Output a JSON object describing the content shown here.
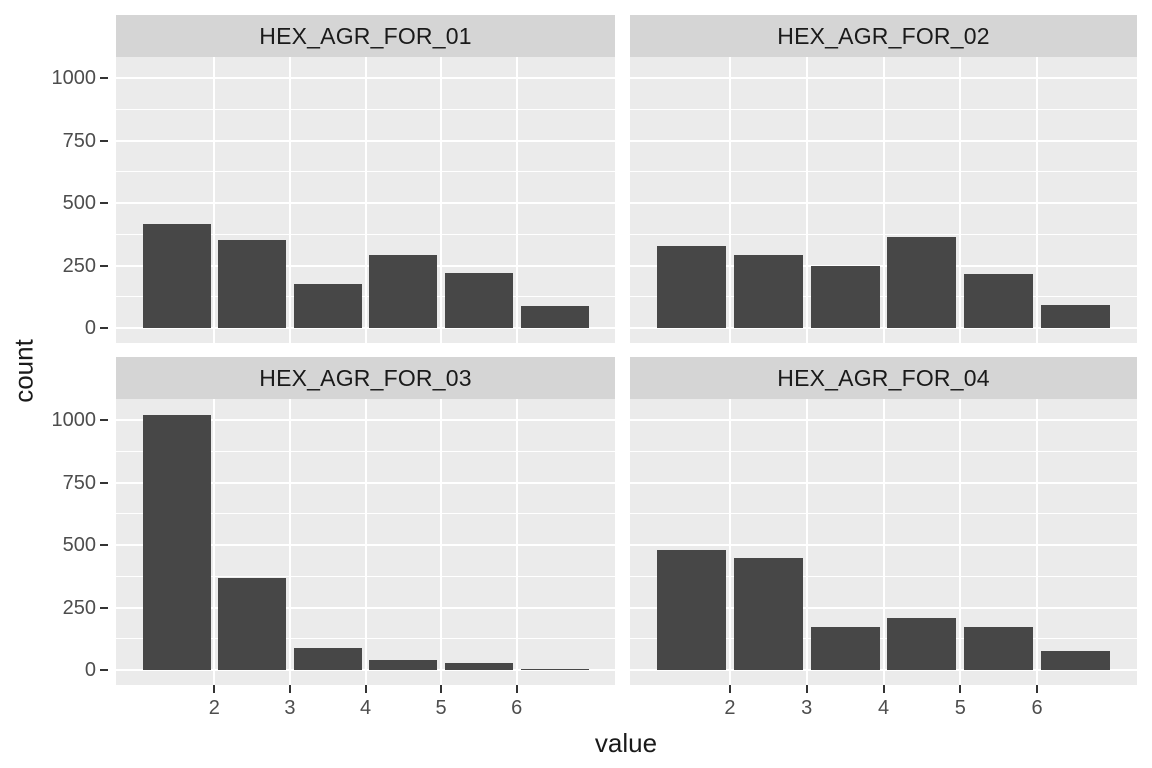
{
  "chart_data": {
    "type": "bar",
    "title": "",
    "xlabel": "value",
    "ylabel": "count",
    "facet_layout": "2x2",
    "legend": "none",
    "grid": true,
    "facets": [
      {
        "label": "HEX_AGR_FOR_01",
        "values": [
          415,
          353,
          177,
          293,
          221,
          90
        ]
      },
      {
        "label": "HEX_AGR_FOR_02",
        "values": [
          330,
          293,
          249,
          364,
          217,
          93
        ]
      },
      {
        "label": "HEX_AGR_FOR_03",
        "values": [
          1020,
          369,
          87,
          40,
          27,
          5
        ]
      },
      {
        "label": "HEX_AGR_FOR_04",
        "values": [
          480,
          448,
          173,
          207,
          172,
          78
        ]
      }
    ],
    "bin_edges": [
      1,
      2,
      3,
      4,
      5,
      6,
      7
    ],
    "bin_centers": [
      1.5,
      2.5,
      3.5,
      4.5,
      5.5,
      6.5
    ],
    "bar_width": 0.9,
    "xticks": [
      "2",
      "3",
      "4",
      "5",
      "6"
    ],
    "xtick_values": [
      2,
      3,
      4,
      5,
      6
    ],
    "yticks": [
      "1000",
      "750",
      "500",
      "250",
      "0"
    ],
    "ytick_values": [
      1000,
      750,
      500,
      250,
      0
    ],
    "ytick_minor_values": [
      875,
      625,
      375,
      125
    ],
    "xlim": [
      0.7,
      7.3
    ],
    "ylim": [
      -60,
      1084
    ],
    "colors": {
      "bar": "#474747",
      "panel_bg": "#EBEBEB",
      "strip_bg": "#D5D5D5",
      "grid": "#FFFFFF",
      "tick_label": "#4D4D4D",
      "axis_title": "#1A1A1A",
      "strip_text": "#1A1A1A",
      "tick_mark": "#333333",
      "background": "#FFFFFF"
    }
  }
}
